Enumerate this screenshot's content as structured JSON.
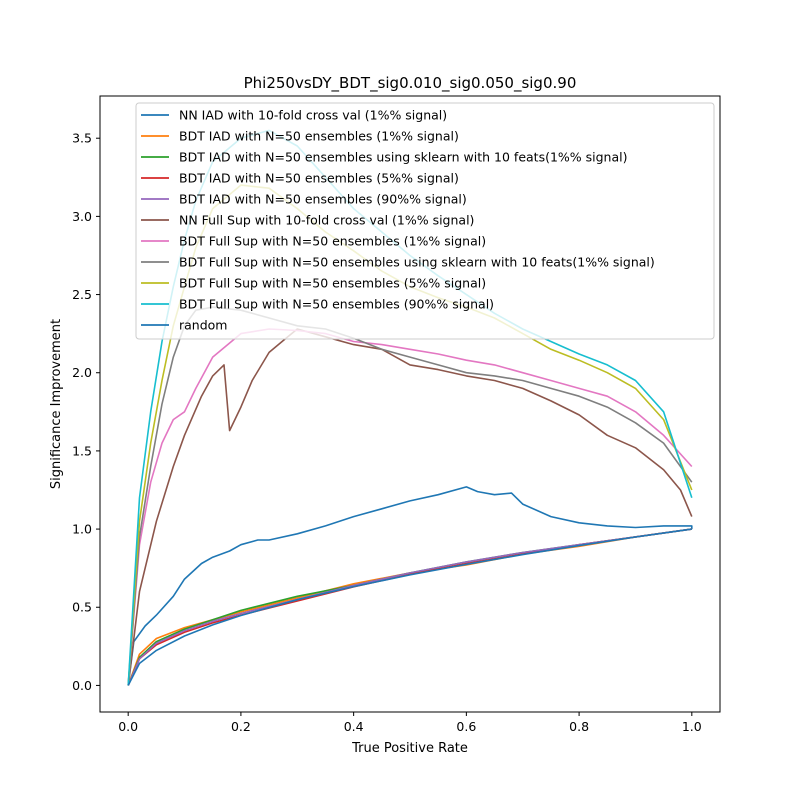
{
  "chart_data": {
    "type": "line",
    "title": "Phi250vsDY_BDT_sig0.010_sig0.050_sig0.90",
    "xlabel": "True Positive Rate",
    "ylabel": "Significance Improvement",
    "xlim": [
      -0.05,
      1.05
    ],
    "ylim": [
      -0.17,
      3.77
    ],
    "xticks": [
      0.0,
      0.2,
      0.4,
      0.6,
      0.8,
      1.0
    ],
    "xtick_labels": [
      "0.0",
      "0.2",
      "0.4",
      "0.6",
      "0.8",
      "1.0"
    ],
    "yticks": [
      0.0,
      0.5,
      1.0,
      1.5,
      2.0,
      2.5,
      3.0,
      3.5
    ],
    "ytick_labels": [
      "0.0",
      "0.5",
      "1.0",
      "1.5",
      "2.0",
      "2.5",
      "3.0",
      "3.5"
    ],
    "grid": false,
    "legend_position": "top-right",
    "series": [
      {
        "name": "NN IAD with 10-fold cross val (1%% signal)",
        "color": "#1f77b4",
        "x": [
          0,
          0.01,
          0.03,
          0.05,
          0.08,
          0.1,
          0.13,
          0.15,
          0.18,
          0.2,
          0.23,
          0.25,
          0.3,
          0.35,
          0.4,
          0.45,
          0.5,
          0.55,
          0.6,
          0.62,
          0.65,
          0.68,
          0.7,
          0.75,
          0.8,
          0.85,
          0.9,
          0.95,
          0.99,
          1.0,
          1.0
        ],
        "y": [
          0,
          0.28,
          0.38,
          0.45,
          0.57,
          0.68,
          0.78,
          0.82,
          0.86,
          0.9,
          0.93,
          0.93,
          0.97,
          1.02,
          1.08,
          1.13,
          1.18,
          1.22,
          1.27,
          1.24,
          1.22,
          1.23,
          1.16,
          1.08,
          1.04,
          1.02,
          1.01,
          1.02,
          1.02,
          1.02,
          1.0
        ]
      },
      {
        "name": "BDT IAD with N=50 ensembles (1%% signal)",
        "color": "#ff7f0e",
        "x": [
          0,
          0.02,
          0.05,
          0.1,
          0.15,
          0.2,
          0.3,
          0.4,
          0.5,
          0.6,
          0.7,
          0.8,
          0.9,
          1.0
        ],
        "y": [
          0,
          0.2,
          0.3,
          0.37,
          0.42,
          0.47,
          0.56,
          0.65,
          0.72,
          0.77,
          0.84,
          0.89,
          0.95,
          1.0
        ]
      },
      {
        "name": "BDT IAD with N=50 ensembles using sklearn with 10 feats(1%% signal)",
        "color": "#2ca02c",
        "x": [
          0,
          0.02,
          0.05,
          0.1,
          0.15,
          0.2,
          0.3,
          0.4,
          0.5,
          0.6,
          0.7,
          0.8,
          0.9,
          1.0
        ],
        "y": [
          0,
          0.18,
          0.28,
          0.36,
          0.42,
          0.48,
          0.57,
          0.64,
          0.72,
          0.79,
          0.85,
          0.9,
          0.95,
          1.0
        ]
      },
      {
        "name": "BDT IAD with N=50 ensembles (5%% signal)",
        "color": "#d62728",
        "x": [
          0,
          0.02,
          0.05,
          0.1,
          0.15,
          0.2,
          0.3,
          0.4,
          0.5,
          0.6,
          0.7,
          0.8,
          0.9,
          1.0
        ],
        "y": [
          0,
          0.17,
          0.26,
          0.34,
          0.4,
          0.45,
          0.54,
          0.63,
          0.71,
          0.78,
          0.84,
          0.9,
          0.95,
          1.0
        ]
      },
      {
        "name": "BDT IAD with N=50 ensembles (90%% signal)",
        "color": "#9467bd",
        "x": [
          0,
          0.02,
          0.05,
          0.1,
          0.15,
          0.2,
          0.3,
          0.4,
          0.5,
          0.6,
          0.7,
          0.8,
          0.9,
          1.0
        ],
        "y": [
          0,
          0.17,
          0.27,
          0.35,
          0.41,
          0.46,
          0.55,
          0.64,
          0.72,
          0.79,
          0.85,
          0.9,
          0.95,
          1.0
        ]
      },
      {
        "name": "NN Full Sup with 10-fold cross val (1%% signal)",
        "color": "#8c564b",
        "x": [
          0,
          0.02,
          0.05,
          0.08,
          0.1,
          0.13,
          0.15,
          0.17,
          0.18,
          0.2,
          0.22,
          0.25,
          0.28,
          0.3,
          0.35,
          0.4,
          0.45,
          0.5,
          0.55,
          0.6,
          0.65,
          0.7,
          0.75,
          0.8,
          0.85,
          0.9,
          0.95,
          0.98,
          1.0
        ],
        "y": [
          0,
          0.6,
          1.05,
          1.4,
          1.6,
          1.85,
          1.98,
          2.05,
          1.63,
          1.78,
          1.95,
          2.13,
          2.22,
          2.28,
          2.23,
          2.18,
          2.15,
          2.05,
          2.02,
          1.98,
          1.95,
          1.9,
          1.82,
          1.73,
          1.6,
          1.52,
          1.38,
          1.25,
          1.08
        ]
      },
      {
        "name": "BDT Full Sup with N=50 ensembles (1%% signal)",
        "color": "#e377c2",
        "x": [
          0,
          0.02,
          0.04,
          0.06,
          0.08,
          0.1,
          0.12,
          0.15,
          0.2,
          0.25,
          0.3,
          0.35,
          0.4,
          0.45,
          0.5,
          0.55,
          0.6,
          0.65,
          0.7,
          0.75,
          0.8,
          0.85,
          0.9,
          0.95,
          1.0
        ],
        "y": [
          0,
          0.9,
          1.3,
          1.55,
          1.7,
          1.75,
          1.9,
          2.1,
          2.25,
          2.28,
          2.27,
          2.25,
          2.2,
          2.18,
          2.15,
          2.12,
          2.08,
          2.05,
          2.0,
          1.95,
          1.9,
          1.85,
          1.75,
          1.6,
          1.4
        ]
      },
      {
        "name": "BDT Full Sup with N=50 ensembles using sklearn with 10 feats(1%% signal)",
        "color": "#7f7f7f",
        "x": [
          0,
          0.02,
          0.04,
          0.06,
          0.08,
          0.1,
          0.12,
          0.15,
          0.2,
          0.25,
          0.3,
          0.35,
          0.4,
          0.45,
          0.5,
          0.55,
          0.6,
          0.65,
          0.7,
          0.75,
          0.8,
          0.85,
          0.9,
          0.95,
          1.0
        ],
        "y": [
          0,
          0.95,
          1.4,
          1.8,
          2.1,
          2.3,
          2.4,
          2.42,
          2.4,
          2.35,
          2.3,
          2.28,
          2.22,
          2.15,
          2.1,
          2.05,
          2.0,
          1.98,
          1.95,
          1.9,
          1.85,
          1.78,
          1.68,
          1.55,
          1.3
        ]
      },
      {
        "name": "BDT Full Sup with N=50 ensembles (5%% signal)",
        "color": "#bcbd22",
        "x": [
          0,
          0.02,
          0.04,
          0.06,
          0.08,
          0.1,
          0.12,
          0.15,
          0.2,
          0.25,
          0.3,
          0.35,
          0.4,
          0.45,
          0.5,
          0.55,
          0.6,
          0.65,
          0.7,
          0.75,
          0.8,
          0.85,
          0.9,
          0.95,
          1.0
        ],
        "y": [
          0,
          1.05,
          1.55,
          1.95,
          2.3,
          2.55,
          2.8,
          3.05,
          3.2,
          3.18,
          3.05,
          2.9,
          2.78,
          2.65,
          2.55,
          2.48,
          2.42,
          2.35,
          2.25,
          2.15,
          2.08,
          2.0,
          1.9,
          1.7,
          1.25
        ]
      },
      {
        "name": "BDT Full Sup with N=50 ensembles (90%% signal)",
        "color": "#17becf",
        "x": [
          0,
          0.02,
          0.04,
          0.06,
          0.08,
          0.1,
          0.12,
          0.15,
          0.2,
          0.25,
          0.3,
          0.35,
          0.4,
          0.45,
          0.5,
          0.55,
          0.6,
          0.65,
          0.7,
          0.75,
          0.8,
          0.85,
          0.9,
          0.95,
          1.0
        ],
        "y": [
          0,
          1.2,
          1.75,
          2.2,
          2.55,
          2.85,
          3.1,
          3.35,
          3.5,
          3.55,
          3.45,
          3.25,
          3.05,
          2.9,
          2.75,
          2.62,
          2.5,
          2.38,
          2.28,
          2.2,
          2.12,
          2.05,
          1.95,
          1.75,
          1.2
        ]
      },
      {
        "name": "random",
        "color": "#1f77b4",
        "x": [
          0,
          0.02,
          0.05,
          0.1,
          0.15,
          0.2,
          0.3,
          0.4,
          0.5,
          0.6,
          0.7,
          0.8,
          0.9,
          1.0
        ],
        "y": [
          0,
          0.141,
          0.224,
          0.316,
          0.387,
          0.447,
          0.548,
          0.632,
          0.707,
          0.775,
          0.837,
          0.894,
          0.949,
          1.0
        ]
      }
    ]
  }
}
